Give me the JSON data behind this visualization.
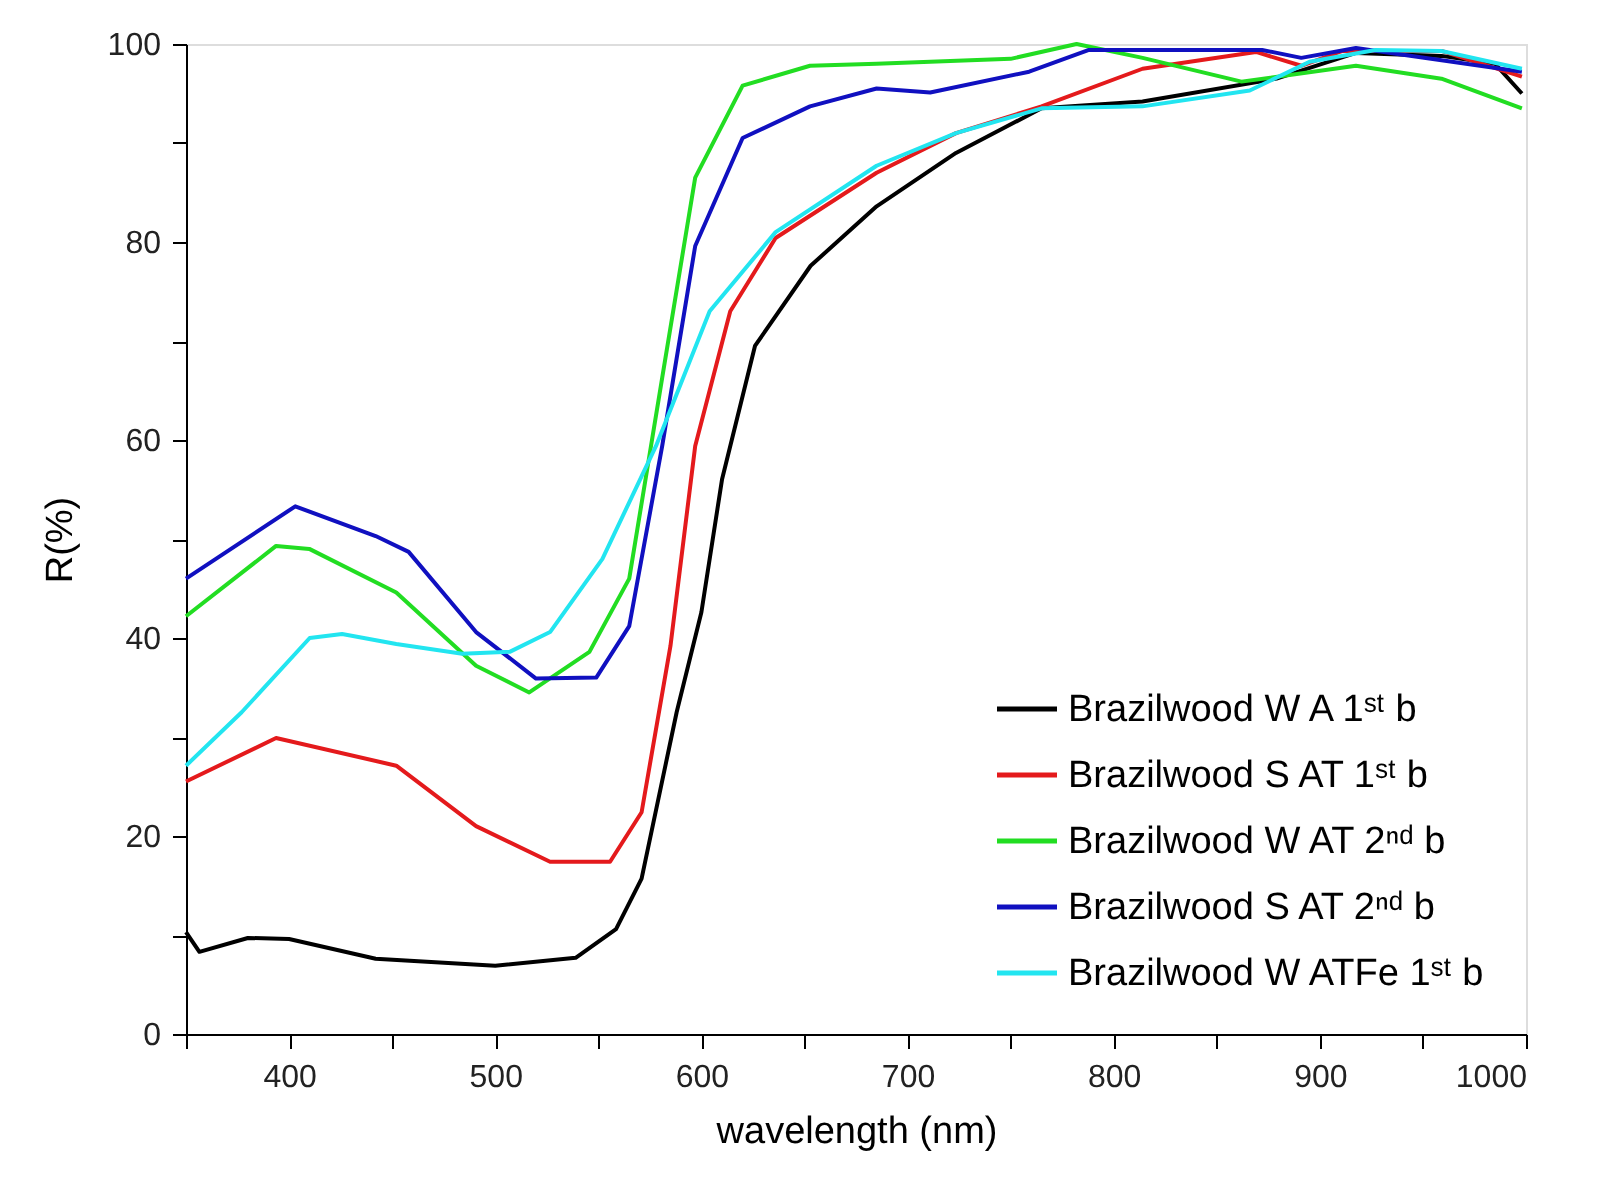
{
  "chart_data": {
    "type": "line",
    "xlabel": "wavelength (nm)",
    "ylabel": "R(%)",
    "xlim": [
      350,
      1000
    ],
    "ylim": [
      0,
      100
    ],
    "xticks": [
      {
        "value": 350,
        "label": null
      },
      400,
      {
        "value": 450,
        "label": null
      },
      500,
      {
        "value": 550,
        "label": null
      },
      600,
      {
        "value": 650,
        "label": null
      },
      700,
      {
        "value": 750,
        "label": null
      },
      800,
      {
        "value": 850,
        "label": null
      },
      900,
      {
        "value": 950,
        "label": null
      },
      1000
    ],
    "yticks": [
      0,
      {
        "value": 10,
        "label": null
      },
      20,
      {
        "value": 30,
        "label": null
      },
      40,
      {
        "value": 50,
        "label": null
      },
      60,
      {
        "value": 70,
        "label": null
      },
      80,
      {
        "value": 90,
        "label": null
      },
      100
    ],
    "grid": false,
    "legend": "bottom right",
    "marker": "none",
    "line_style": "solid",
    "series": [
      {
        "name": "Brazilwood W A 1ˢᵗ b",
        "color": "#000000",
        "x": [
          350,
          356.5,
          380,
          400,
          442,
          500,
          539,
          558.6,
          571,
          588,
          600,
          610,
          626,
          653,
          685,
          723.5,
          765,
          814,
          879,
          917.5,
          959,
          985,
          998
        ],
        "values": [
          10.3,
          8.3,
          9.7,
          9.6,
          7.6,
          6.9,
          7.7,
          10.6,
          15.7,
          32.5,
          42.6,
          56,
          69.5,
          77.6,
          83.6,
          89,
          93.5,
          94.2,
          96.5,
          99.1,
          98.8,
          98,
          95
        ]
      },
      {
        "name": "Brazilwood S AT 1ˢᵗ b",
        "color": "#e41a1c",
        "x": [
          350,
          393.7,
          452,
          490.7,
          526.6,
          555.7,
          571,
          585,
          597,
          614,
          636,
          685,
          723.5,
          765,
          814,
          869,
          891,
          911,
          959,
          998
        ],
        "values": [
          25.5,
          29.9,
          27.1,
          21,
          17.4,
          17.4,
          22.4,
          39.2,
          59.4,
          73,
          80.4,
          87,
          91,
          93.7,
          97.5,
          99.2,
          97.8,
          99.3,
          99.3,
          96.7
        ]
      },
      {
        "name": "Brazilwood W AT 2ⁿᵈ b",
        "color": "#22dd22",
        "x": [
          350,
          393.7,
          409.8,
          452,
          490.7,
          516.5,
          545.7,
          565,
          581,
          597,
          620,
          652.7,
          685,
          750,
          782,
          814,
          862,
          917.5,
          959,
          998
        ],
        "values": [
          42.2,
          49.3,
          49,
          44.6,
          37.2,
          34.5,
          38.6,
          46,
          66.3,
          86.5,
          95.8,
          97.8,
          98,
          98.5,
          100,
          98.6,
          96.2,
          97.8,
          96.5,
          93.5
        ]
      },
      {
        "name": "Brazilwood S AT 2ⁿᵈ b",
        "color": "#1010c0",
        "x": [
          350,
          403,
          442,
          458,
          490.7,
          519.8,
          549,
          565,
          581,
          597,
          620,
          652.7,
          685,
          711,
          759,
          788,
          872,
          891,
          917.5,
          998
        ],
        "values": [
          46,
          53.3,
          50.3,
          48.7,
          40.6,
          35.9,
          36,
          41.2,
          59.4,
          79.6,
          90.5,
          93.7,
          95.5,
          95.1,
          97.2,
          99.4,
          99.4,
          98.6,
          99.6,
          97.2
        ]
      },
      {
        "name": "Brazilwood W ATFe 1ˢᵗ b",
        "color": "#22e5f0",
        "x": [
          350,
          377,
          410,
          425.7,
          452,
          484,
          507,
          526.6,
          552,
          578,
          604,
          636,
          685,
          723.5,
          765,
          814,
          866,
          895,
          927,
          959,
          998
        ],
        "values": [
          27.1,
          32.5,
          40,
          40.4,
          39.4,
          38.4,
          38.6,
          40.6,
          48,
          59.4,
          73,
          81,
          87.7,
          91,
          93.5,
          93.7,
          95.3,
          98.2,
          99.4,
          99.3,
          97.5
        ]
      }
    ]
  }
}
